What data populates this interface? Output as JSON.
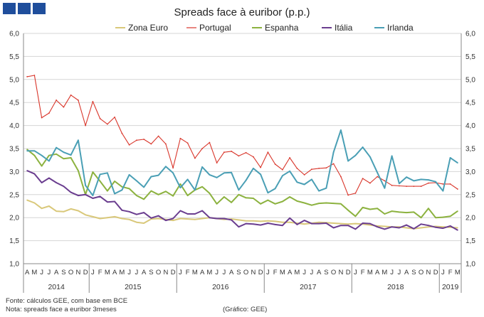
{
  "chart_data": {
    "type": "line",
    "title": "Spreads face à euribor (p.p.)",
    "xlabel": "",
    "ylabel": "",
    "ylim": [
      1.0,
      6.0
    ],
    "yticks": [
      "1,0",
      "1,5",
      "2,0",
      "2,5",
      "3,0",
      "3,5",
      "4,0",
      "4,5",
      "5,0",
      "5,5",
      "6,0"
    ],
    "grid": true,
    "legend_position": "top",
    "month_labels": [
      "A",
      "M",
      "J",
      "J",
      "A",
      "S",
      "O",
      "N",
      "D",
      "J",
      "F",
      "M",
      "A",
      "M",
      "J",
      "J",
      "A",
      "S",
      "O",
      "N",
      "D",
      "J",
      "F",
      "M",
      "A",
      "M",
      "J",
      "J",
      "A",
      "S",
      "O",
      "N",
      "D",
      "J",
      "F",
      "M",
      "A",
      "M",
      "J",
      "J",
      "A",
      "S",
      "O",
      "N",
      "D",
      "J",
      "F",
      "M",
      "A",
      "M",
      "J",
      "J",
      "A",
      "S",
      "O",
      "N",
      "D",
      "J",
      "F",
      "M"
    ],
    "years": [
      {
        "label": "2014",
        "start": 0,
        "end": 9
      },
      {
        "label": "2015",
        "start": 9,
        "end": 21
      },
      {
        "label": "2016",
        "start": 21,
        "end": 33
      },
      {
        "label": "2017",
        "start": 33,
        "end": 45
      },
      {
        "label": "2018",
        "start": 45,
        "end": 57
      },
      {
        "label": "2019",
        "start": 57,
        "end": 60
      }
    ],
    "series": [
      {
        "name": "Zona Euro",
        "color": "#d9c87a",
        "values": [
          2.38,
          2.32,
          2.2,
          2.25,
          2.14,
          2.13,
          2.19,
          2.15,
          2.06,
          2.02,
          1.98,
          2.0,
          2.02,
          1.98,
          1.96,
          1.9,
          1.88,
          1.97,
          1.98,
          1.96,
          1.94,
          1.98,
          1.97,
          1.96,
          1.98,
          2.0,
          1.98,
          1.96,
          1.97,
          1.95,
          1.93,
          1.93,
          1.92,
          1.93,
          1.92,
          1.9,
          1.9,
          1.88,
          1.86,
          1.88,
          1.9,
          1.89,
          1.88,
          1.87,
          1.86,
          1.87,
          1.86,
          1.84,
          1.82,
          1.81,
          1.8,
          1.8,
          1.78,
          1.76,
          1.78,
          1.8,
          1.81,
          1.8,
          1.79,
          1.78
        ]
      },
      {
        "name": "Portugal",
        "color": "#d9362b",
        "values": [
          5.06,
          5.09,
          4.17,
          4.27,
          4.55,
          4.4,
          4.66,
          4.55,
          4.0,
          4.52,
          4.15,
          4.03,
          4.18,
          3.83,
          3.58,
          3.68,
          3.7,
          3.6,
          3.77,
          3.6,
          3.08,
          3.72,
          3.62,
          3.29,
          3.5,
          3.63,
          3.19,
          3.42,
          3.44,
          3.34,
          3.41,
          3.32,
          3.09,
          3.42,
          3.16,
          3.04,
          3.3,
          3.07,
          2.93,
          3.05,
          3.07,
          3.08,
          3.17,
          2.89,
          2.49,
          2.53,
          2.85,
          2.75,
          2.89,
          2.8,
          2.7,
          2.69,
          2.68,
          2.68,
          2.68,
          2.75,
          2.76,
          2.73,
          2.73,
          2.62
        ]
      },
      {
        "name": "Espanha",
        "color": "#8cb23f",
        "values": [
          3.48,
          3.35,
          3.12,
          3.35,
          3.38,
          3.28,
          3.3,
          3.02,
          2.5,
          2.99,
          2.79,
          2.58,
          2.79,
          2.67,
          2.63,
          2.48,
          2.4,
          2.58,
          2.5,
          2.57,
          2.47,
          2.73,
          2.48,
          2.6,
          2.67,
          2.53,
          2.3,
          2.45,
          2.33,
          2.5,
          2.43,
          2.42,
          2.3,
          2.38,
          2.3,
          2.35,
          2.45,
          2.36,
          2.32,
          2.27,
          2.31,
          2.32,
          2.31,
          2.3,
          2.16,
          2.03,
          2.22,
          2.18,
          2.2,
          2.08,
          2.14,
          2.12,
          2.11,
          2.12,
          2.0,
          2.2,
          2.0,
          2.01,
          2.03,
          2.14
        ]
      },
      {
        "name": "Itália",
        "color": "#6a3d8f",
        "values": [
          3.02,
          2.95,
          2.76,
          2.86,
          2.76,
          2.68,
          2.55,
          2.48,
          2.5,
          2.42,
          2.46,
          2.34,
          2.35,
          2.16,
          2.13,
          2.07,
          2.11,
          1.99,
          2.04,
          1.94,
          1.98,
          2.15,
          2.08,
          2.08,
          2.15,
          2.0,
          1.98,
          1.98,
          1.95,
          1.8,
          1.87,
          1.86,
          1.84,
          1.88,
          1.85,
          1.83,
          1.99,
          1.85,
          1.94,
          1.87,
          1.87,
          1.88,
          1.78,
          1.83,
          1.83,
          1.75,
          1.88,
          1.87,
          1.8,
          1.75,
          1.8,
          1.78,
          1.84,
          1.76,
          1.86,
          1.83,
          1.79,
          1.77,
          1.82,
          1.73
        ]
      },
      {
        "name": "Irlanda",
        "color": "#4a9fb5",
        "values": [
          3.45,
          3.45,
          3.35,
          3.23,
          3.52,
          3.42,
          3.36,
          3.68,
          2.7,
          2.48,
          2.94,
          2.97,
          2.52,
          2.6,
          2.93,
          2.8,
          2.66,
          2.89,
          2.92,
          3.11,
          2.97,
          2.65,
          2.83,
          2.6,
          3.1,
          2.93,
          2.87,
          2.97,
          2.98,
          2.6,
          2.81,
          3.07,
          2.94,
          2.54,
          2.63,
          2.91,
          3.01,
          2.77,
          2.72,
          2.83,
          2.58,
          2.64,
          3.42,
          3.9,
          3.23,
          3.35,
          3.53,
          3.32,
          2.98,
          2.64,
          3.34,
          2.74,
          2.88,
          2.8,
          2.83,
          2.82,
          2.78,
          2.58,
          3.3,
          3.19
        ]
      }
    ]
  },
  "notes": {
    "source": "Fonte: cálculos GEE, com base em BCE",
    "note": "Nota: spreads face a euribor 3meses",
    "credit": "(Gráfico: GEE)"
  }
}
